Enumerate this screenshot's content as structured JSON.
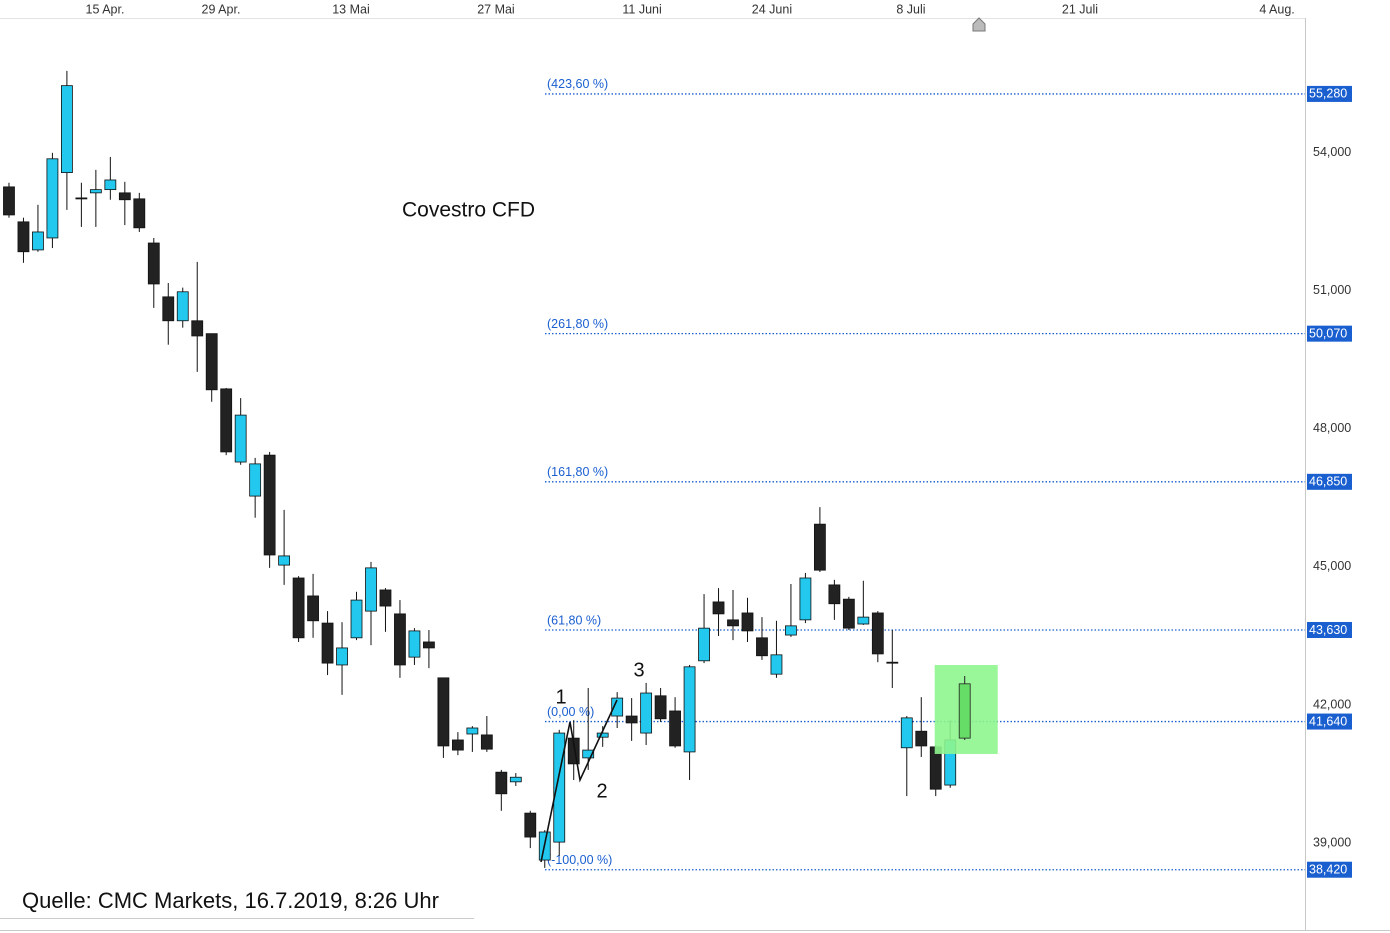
{
  "chart_data": {
    "type": "candlestick",
    "title": "Covestro CFD",
    "source": "Quelle: CMC Markets, 16.7.2019, 8:26 Uhr",
    "up_color": "#22c8ee",
    "down_color": "#222222",
    "x": [
      0,
      1,
      2,
      3,
      4,
      5,
      6,
      7,
      8,
      9,
      10,
      11,
      12,
      13,
      14,
      15,
      16,
      17,
      18,
      19,
      20,
      21,
      22,
      23,
      24,
      25,
      26,
      27,
      28,
      29,
      30,
      31,
      32,
      33,
      34,
      35,
      36,
      37,
      38,
      39,
      40,
      41,
      42,
      43,
      44,
      45,
      46,
      47,
      48,
      49,
      50,
      51,
      52,
      53,
      54,
      55,
      56,
      57,
      58,
      59,
      60,
      61,
      62,
      63,
      64,
      65
    ],
    "open": [
      53.26,
      52.5,
      51.89,
      52.15,
      53.57,
      53.02,
      53.13,
      53.2,
      53.13,
      53.0,
      52.04,
      50.87,
      50.35,
      50.35,
      50.07,
      48.87,
      47.28,
      46.54,
      47.43,
      45.04,
      44.76,
      44.37,
      43.78,
      42.87,
      43.46,
      44.04,
      44.5,
      43.98,
      43.04,
      43.37,
      42.59,
      41.24,
      41.37,
      41.35,
      40.54,
      40.33,
      39.65,
      38.63,
      39.02,
      41.28,
      40.85,
      41.3,
      41.76,
      41.76,
      41.39,
      42.2,
      41.87,
      40.98,
      42.96,
      44.24,
      43.85,
      44.0,
      43.46,
      42.67,
      43.52,
      43.85,
      45.93,
      44.61,
      44.3,
      43.76,
      44.0,
      42.93,
      41.07,
      41.43,
      41.09,
      40.26
    ],
    "high": [
      53.35,
      52.59,
      52.87,
      54.0,
      55.78,
      53.35,
      53.63,
      53.91,
      53.37,
      53.13,
      52.15,
      51.17,
      51.07,
      51.63,
      50.07,
      48.89,
      48.67,
      47.37,
      47.5,
      46.24,
      44.8,
      44.85,
      44.04,
      43.8,
      44.46,
      45.11,
      44.54,
      44.28,
      43.67,
      43.63,
      42.59,
      41.41,
      41.54,
      41.76,
      40.59,
      40.52,
      39.7,
      39.28,
      41.46,
      41.67,
      42.37,
      41.54,
      42.28,
      42.15,
      42.48,
      42.37,
      42.17,
      42.87,
      44.41,
      44.54,
      44.5,
      44.33,
      43.91,
      43.83,
      44.63,
      44.87,
      46.3,
      44.72,
      44.35,
      44.7,
      44.04,
      43.63,
      41.76,
      42.17,
      41.13,
      41.67
    ],
    "low": [
      52.59,
      51.61,
      51.85,
      51.93,
      52.76,
      52.39,
      52.39,
      52.98,
      52.43,
      52.28,
      50.63,
      49.83,
      50.2,
      49.24,
      48.59,
      47.43,
      47.22,
      46.07,
      44.98,
      44.61,
      43.37,
      43.46,
      42.65,
      42.22,
      43.41,
      43.3,
      43.59,
      42.59,
      42.87,
      42.8,
      40.85,
      40.91,
      40.98,
      40.98,
      39.7,
      40.24,
      38.89,
      38.46,
      38.72,
      40.37,
      40.59,
      41.09,
      41.5,
      41.22,
      41.13,
      41.63,
      41.07,
      40.37,
      42.91,
      43.5,
      43.41,
      43.37,
      42.98,
      42.59,
      43.48,
      43.78,
      44.89,
      43.85,
      43.63,
      43.74,
      42.93,
      42.37,
      40.02,
      40.87,
      40.02,
      40.2
    ],
    "close": [
      52.65,
      51.85,
      52.28,
      53.87,
      55.46,
      53.0,
      53.2,
      53.41,
      52.98,
      52.37,
      51.15,
      50.35,
      50.98,
      50.02,
      48.85,
      47.5,
      48.3,
      47.24,
      45.26,
      45.24,
      43.46,
      43.83,
      42.91,
      43.24,
      44.28,
      44.98,
      44.15,
      42.87,
      43.61,
      43.24,
      41.11,
      41.02,
      41.5,
      41.04,
      40.07,
      40.43,
      39.13,
      39.24,
      41.39,
      40.72,
      41.02,
      41.39,
      42.15,
      41.61,
      42.26,
      41.7,
      41.11,
      42.83,
      43.67,
      43.98,
      43.72,
      43.61,
      43.07,
      43.09,
      43.72,
      44.76,
      44.93,
      44.2,
      43.67,
      43.91,
      43.11,
      42.91,
      41.72,
      41.11,
      40.17,
      41.24
    ],
    "projection": {
      "x": 66,
      "open": 41.28,
      "high": 42.63,
      "low": 41.24,
      "close": 42.46,
      "color": "#66dd66",
      "box_color": "#8ef58e"
    },
    "fib_levels": [
      {
        "label": "(423,60 %)",
        "value": 55.28,
        "price_label": "55,280"
      },
      {
        "label": "(261,80 %)",
        "value": 50.07,
        "price_label": "50,070"
      },
      {
        "label": "(161,80 %)",
        "value": 46.85,
        "price_label": "46,850"
      },
      {
        "label": "(61,80 %)",
        "value": 43.63,
        "price_label": "43,630"
      },
      {
        "label": "(0,00 %)",
        "value": 41.64,
        "price_label": "41,640"
      },
      {
        "label": "(-100,00 %)",
        "value": 38.42,
        "price_label": "38,420"
      }
    ],
    "fib_color": "#1a5fd0",
    "wave_labels": [
      "1",
      "2",
      "3"
    ],
    "xlim": [
      -0.62,
      89.5
    ],
    "ylim": [
      37.11,
      56.93
    ],
    "xticks": [
      {
        "value": 6.63,
        "label": "15 Apr."
      },
      {
        "value": 14.64,
        "label": "29 Apr."
      },
      {
        "value": 23.62,
        "label": "13 Mai"
      },
      {
        "value": 33.63,
        "label": "27 Mai"
      },
      {
        "value": 43.72,
        "label": "11 Juni"
      },
      {
        "value": 52.69,
        "label": "24 Juni"
      },
      {
        "value": 62.29,
        "label": "8 Juli"
      },
      {
        "value": 73.96,
        "label": "21 Juli"
      },
      {
        "value": 87.57,
        "label": "4 Aug."
      }
    ],
    "yticks": [
      {
        "value": 39,
        "label": "39,000"
      },
      {
        "value": 42,
        "label": "42,000"
      },
      {
        "value": 45,
        "label": "45,000"
      },
      {
        "value": 48,
        "label": "48,000"
      },
      {
        "value": 51,
        "label": "51,000"
      },
      {
        "value": 54,
        "label": "54,000"
      }
    ]
  }
}
